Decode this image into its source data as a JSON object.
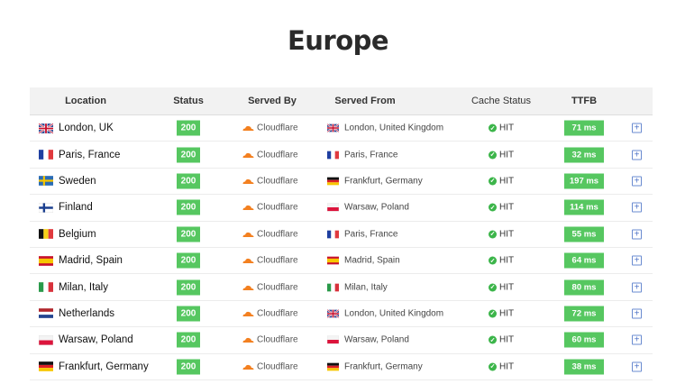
{
  "title": "Europe",
  "columns": {
    "location": "Location",
    "status": "Status",
    "served_by": "Served By",
    "served_from": "Served From",
    "cache_status": "Cache Status",
    "ttfb": "TTFB"
  },
  "colors": {
    "success": "#56c760",
    "cloudflare": "#f38020",
    "hit": "#3cb54a"
  },
  "rows": [
    {
      "location": "London, UK",
      "flag": "gb",
      "status": "200",
      "served_by": "Cloudflare",
      "from_flag": "gb",
      "served_from": "London, United Kingdom",
      "cache": "HIT",
      "ttfb": "71 ms"
    },
    {
      "location": "Paris, France",
      "flag": "fr",
      "status": "200",
      "served_by": "Cloudflare",
      "from_flag": "fr",
      "served_from": "Paris, France",
      "cache": "HIT",
      "ttfb": "32 ms"
    },
    {
      "location": "Sweden",
      "flag": "se",
      "status": "200",
      "served_by": "Cloudflare",
      "from_flag": "de",
      "served_from": "Frankfurt, Germany",
      "cache": "HIT",
      "ttfb": "197 ms"
    },
    {
      "location": "Finland",
      "flag": "fi",
      "status": "200",
      "served_by": "Cloudflare",
      "from_flag": "pl",
      "served_from": "Warsaw, Poland",
      "cache": "HIT",
      "ttfb": "114 ms"
    },
    {
      "location": "Belgium",
      "flag": "be",
      "status": "200",
      "served_by": "Cloudflare",
      "from_flag": "fr",
      "served_from": "Paris, France",
      "cache": "HIT",
      "ttfb": "55 ms"
    },
    {
      "location": "Madrid, Spain",
      "flag": "es",
      "status": "200",
      "served_by": "Cloudflare",
      "from_flag": "es",
      "served_from": "Madrid, Spain",
      "cache": "HIT",
      "ttfb": "64 ms"
    },
    {
      "location": "Milan, Italy",
      "flag": "it",
      "status": "200",
      "served_by": "Cloudflare",
      "from_flag": "it",
      "served_from": "Milan, Italy",
      "cache": "HIT",
      "ttfb": "80 ms"
    },
    {
      "location": "Netherlands",
      "flag": "nl",
      "status": "200",
      "served_by": "Cloudflare",
      "from_flag": "gb",
      "served_from": "London, United Kingdom",
      "cache": "HIT",
      "ttfb": "72 ms"
    },
    {
      "location": "Warsaw, Poland",
      "flag": "pl",
      "status": "200",
      "served_by": "Cloudflare",
      "from_flag": "pl",
      "served_from": "Warsaw, Poland",
      "cache": "HIT",
      "ttfb": "60 ms"
    },
    {
      "location": "Frankfurt, Germany",
      "flag": "de",
      "status": "200",
      "served_by": "Cloudflare",
      "from_flag": "de",
      "served_from": "Frankfurt, Germany",
      "cache": "HIT",
      "ttfb": "38 ms"
    }
  ]
}
